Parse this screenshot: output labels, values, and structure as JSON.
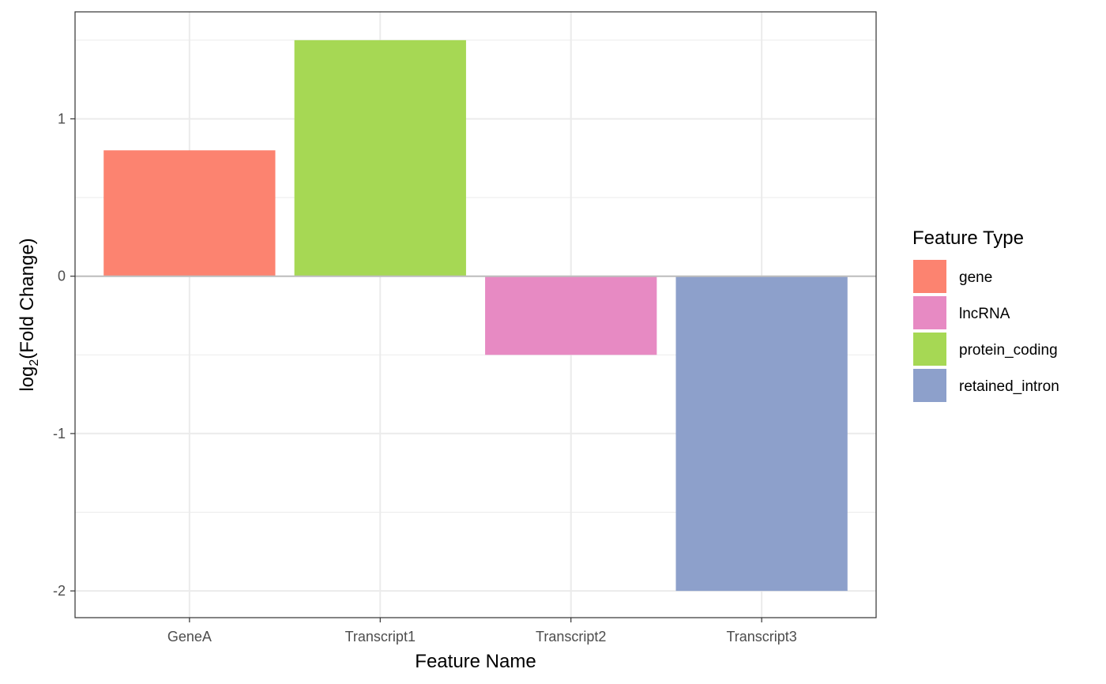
{
  "chart_data": {
    "type": "bar",
    "categories": [
      "GeneA",
      "Transcript1",
      "Transcript2",
      "Transcript3"
    ],
    "values": [
      0.8,
      1.5,
      -0.5,
      -2.0
    ],
    "bar_feature_types": [
      "gene",
      "protein_coding",
      "lncRNA",
      "retained_intron"
    ],
    "xlabel": "Feature Name",
    "ylabel_main": "log",
    "ylabel_sub": "2",
    "ylabel_rest": "(Fold Change)",
    "ylim": [
      -2.17,
      1.68
    ],
    "yticks": [
      -2,
      -1,
      0,
      1
    ],
    "ytick_labels": [
      "-2",
      "-1",
      "0",
      "1"
    ],
    "grid": true,
    "legend": {
      "title": "Feature Type",
      "position": "right",
      "entries": [
        {
          "label": "gene",
          "color": "#FC8370"
        },
        {
          "label": "lncRNA",
          "color": "#E78AC3"
        },
        {
          "label": "protein_coding",
          "color": "#A6D854"
        },
        {
          "label": "retained_intron",
          "color": "#8DA0CB"
        }
      ]
    },
    "colors": {
      "gene": "#FC8370",
      "lncRNA": "#E78AC3",
      "protein_coding": "#A6D854",
      "retained_intron": "#8DA0CB",
      "zero_line": "#BEBEBE",
      "grid": "#EBEBEB",
      "panel_border": "#333333"
    }
  }
}
